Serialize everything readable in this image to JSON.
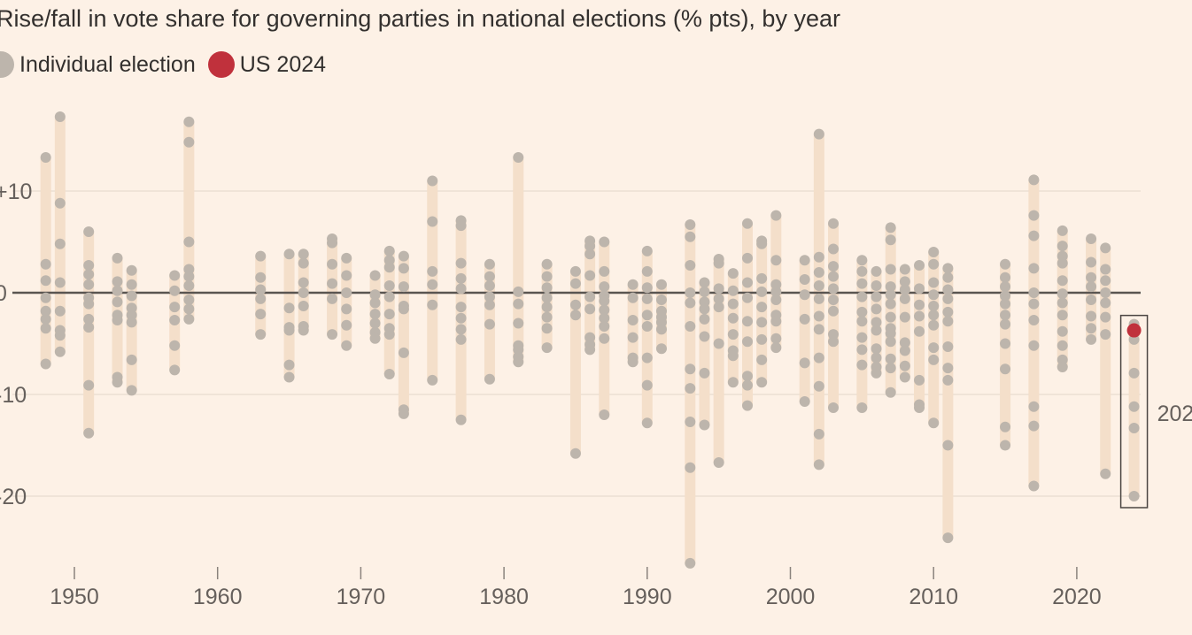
{
  "title": "Rise/fall in vote share for governing parties in national elections (% pts), by year",
  "legend": [
    {
      "label": "Individual election",
      "color": "#bdb5ac"
    },
    {
      "label": "US 2024",
      "color": "#c0313c"
    }
  ],
  "colors": {
    "background": "#fdf1e6",
    "bar": "#f4dfca",
    "dot": "#bdb5ac",
    "highlight": "#c0313c",
    "zero_line": "#5a5551",
    "grid": "#e8dccf"
  },
  "annotation": {
    "label": "202",
    "year": 2024
  },
  "chart_data": {
    "type": "scatter",
    "title": "Rise/fall in vote share for governing parties in national elections (% pts), by year",
    "xlabel": "",
    "ylabel": "",
    "xlim": [
      1947,
      2026
    ],
    "ylim": [
      -27,
      18
    ],
    "x_ticks": [
      1950,
      1960,
      1970,
      1980,
      1990,
      2000,
      2010,
      2020
    ],
    "y_ticks": [
      {
        "value": 10,
        "label": "+10"
      },
      {
        "value": 0,
        "label": "0"
      },
      {
        "value": -10,
        "label": "-10"
      },
      {
        "value": -20,
        "label": "-20"
      }
    ],
    "grid": true,
    "legend_position": "top-left",
    "series": [
      {
        "name": "Individual election",
        "points": [
          {
            "year": 1948,
            "values": [
              13.3,
              2.8,
              1.2,
              -0.5,
              -1.8,
              -2.6,
              -3.5,
              -7.0
            ]
          },
          {
            "year": 1949,
            "values": [
              17.3,
              8.8,
              4.8,
              1.0,
              -1.8,
              -3.7,
              -4.2,
              -5.8
            ]
          },
          {
            "year": 1951,
            "values": [
              6.0,
              2.7,
              1.8,
              0.8,
              -0.5,
              -1.1,
              -2.6,
              -3.4,
              -9.1,
              -13.8
            ]
          },
          {
            "year": 1953,
            "values": [
              3.4,
              1.1,
              0.2,
              -0.9,
              -2.2,
              -2.7,
              -8.3,
              -8.8
            ]
          },
          {
            "year": 1954,
            "values": [
              2.2,
              0.8,
              -0.3,
              -1.5,
              -2.2,
              -2.9,
              -6.6,
              -9.6
            ]
          },
          {
            "year": 1957,
            "values": [
              1.7,
              0.2,
              -1.4,
              -2.7,
              -5.2,
              -7.6
            ]
          },
          {
            "year": 1958,
            "values": [
              16.8,
              14.8,
              5.0,
              2.3,
              1.6,
              0.7,
              -0.7,
              -1.6,
              -2.6
            ]
          },
          {
            "year": 1963,
            "values": [
              3.6,
              1.5,
              0.3,
              -0.6,
              -2.1,
              -4.1
            ]
          },
          {
            "year": 1965,
            "values": [
              3.8,
              -1.5,
              -3.4,
              -3.7,
              -7.1,
              -8.3
            ]
          },
          {
            "year": 1966,
            "values": [
              3.8,
              2.9,
              1.0,
              0.0,
              -1.3,
              -3.3,
              -3.7
            ]
          },
          {
            "year": 1968,
            "values": [
              5.3,
              4.9,
              2.8,
              0.9,
              -0.6,
              -4.1
            ]
          },
          {
            "year": 1969,
            "values": [
              3.4,
              1.7,
              0.0,
              -1.6,
              -3.2,
              -5.2
            ]
          },
          {
            "year": 1971,
            "values": [
              1.7,
              -0.2,
              -1.0,
              -2.1,
              -3.0,
              -3.9,
              -4.5
            ]
          },
          {
            "year": 1972,
            "values": [
              4.1,
              3.2,
              2.5,
              0.7,
              -0.4,
              -2.1,
              -3.5,
              -4.1,
              -8.0
            ]
          },
          {
            "year": 1973,
            "values": [
              3.6,
              2.4,
              0.6,
              -1.3,
              -1.6,
              -5.9,
              -11.5,
              -11.9
            ]
          },
          {
            "year": 1975,
            "values": [
              11.0,
              7.0,
              2.1,
              0.8,
              -1.2,
              -8.6
            ]
          },
          {
            "year": 1977,
            "values": [
              7.1,
              6.6,
              2.9,
              1.4,
              0.4,
              -1.4,
              -2.5,
              -3.6,
              -4.6,
              -12.5
            ]
          },
          {
            "year": 1979,
            "values": [
              2.8,
              1.6,
              0.7,
              -0.4,
              -1.2,
              -3.1,
              -8.5
            ]
          },
          {
            "year": 1981,
            "values": [
              13.3,
              0.1,
              -1.1,
              -3.0,
              -5.2,
              -5.6,
              -6.3,
              -6.8
            ]
          },
          {
            "year": 1983,
            "values": [
              2.8,
              1.6,
              0.5,
              -0.5,
              -1.4,
              -2.4,
              -3.5,
              -5.4
            ]
          },
          {
            "year": 1985,
            "values": [
              2.1,
              0.9,
              -1.2,
              -2.2,
              -15.8
            ]
          },
          {
            "year": 1986,
            "values": [
              5.1,
              4.6,
              3.8,
              1.7,
              -0.4,
              -1.6,
              -4.4,
              -5.1,
              -5.6
            ]
          },
          {
            "year": 1987,
            "values": [
              5.0,
              2.1,
              0.6,
              -0.3,
              -0.8,
              -1.7,
              -2.5,
              -3.3,
              -4.5,
              -12.0
            ]
          },
          {
            "year": 1989,
            "values": [
              0.8,
              -0.5,
              -2.7,
              -4.4,
              -6.4,
              -6.8
            ]
          },
          {
            "year": 1990,
            "values": [
              4.1,
              2.1,
              0.5,
              -0.6,
              -2.2,
              -3.3,
              -6.4,
              -9.1,
              -12.8
            ]
          },
          {
            "year": 1991,
            "values": [
              0.8,
              -0.7,
              -1.8,
              -2.4,
              -2.9,
              -3.6,
              -5.5
            ]
          },
          {
            "year": 1993,
            "values": [
              6.7,
              5.5,
              2.7,
              0.0,
              -1.0,
              -3.3,
              -7.5,
              -9.4,
              -12.7,
              -17.2,
              -26.6
            ]
          },
          {
            "year": 1994,
            "values": [
              1.0,
              0.1,
              -0.9,
              -1.6,
              -2.6,
              -4.3,
              -7.9,
              -13.0
            ]
          },
          {
            "year": 1995,
            "values": [
              3.3,
              2.9,
              0.4,
              -0.6,
              -1.4,
              -5.0,
              -16.7
            ]
          },
          {
            "year": 1996,
            "values": [
              1.9,
              0.2,
              -1.1,
              -2.5,
              -4.1,
              -5.7,
              -6.2,
              -8.8
            ]
          },
          {
            "year": 1997,
            "values": [
              6.8,
              3.4,
              1.0,
              -0.5,
              -2.8,
              -4.8,
              -8.2,
              -9.1,
              -11.1
            ]
          },
          {
            "year": 1998,
            "values": [
              5.1,
              4.8,
              1.4,
              0.1,
              -1.4,
              -2.9,
              -4.6,
              -6.6,
              -8.8
            ]
          },
          {
            "year": 1999,
            "values": [
              7.6,
              3.2,
              0.8,
              0.1,
              -0.7,
              -2.2,
              -2.8,
              -4.5,
              -5.4
            ]
          },
          {
            "year": 2001,
            "values": [
              3.2,
              1.3,
              -0.2,
              -2.6,
              -6.9,
              -10.7
            ]
          },
          {
            "year": 2002,
            "values": [
              15.6,
              3.5,
              2.0,
              0.7,
              -0.6,
              -2.3,
              -3.6,
              -6.4,
              -9.2,
              -13.9,
              -16.9
            ]
          },
          {
            "year": 2003,
            "values": [
              6.8,
              4.3,
              2.6,
              1.6,
              0.4,
              -0.7,
              -1.8,
              -4.1,
              -4.8,
              -11.3
            ]
          },
          {
            "year": 2005,
            "values": [
              3.2,
              2.1,
              0.9,
              -0.4,
              -1.9,
              -2.8,
              -4.4,
              -5.6,
              -7.1,
              -11.3
            ]
          },
          {
            "year": 2006,
            "values": [
              2.1,
              0.7,
              -0.4,
              -1.6,
              -2.9,
              -3.7,
              -5.5,
              -6.4,
              -7.3,
              -7.9
            ]
          },
          {
            "year": 2007,
            "values": [
              6.4,
              5.2,
              2.3,
              0.6,
              -0.2,
              -1.1,
              -2.4,
              -3.5,
              -4.0,
              -4.8,
              -6.5,
              -7.4,
              -9.8
            ]
          },
          {
            "year": 2008,
            "values": [
              2.3,
              1.1,
              0.3,
              -0.6,
              -2.4,
              -4.9,
              -5.7,
              -7.2,
              -8.3
            ]
          },
          {
            "year": 2009,
            "values": [
              2.7,
              0.4,
              -1.2,
              -2.3,
              -3.8,
              -8.6,
              -11.0,
              -11.3
            ]
          },
          {
            "year": 2010,
            "values": [
              4.0,
              2.8,
              1.0,
              -0.2,
              -1.3,
              -2.2,
              -3.2,
              -5.4,
              -6.6,
              -12.8
            ]
          },
          {
            "year": 2011,
            "values": [
              2.4,
              1.5,
              0.3,
              -0.6,
              -1.9,
              -2.8,
              -5.3,
              -7.4,
              -8.6,
              -15.0,
              -24.1
            ]
          },
          {
            "year": 2015,
            "values": [
              2.8,
              1.5,
              0.6,
              -0.3,
              -1.1,
              -2.2,
              -3.1,
              -5.0,
              -7.5,
              -13.2,
              -15.0
            ]
          },
          {
            "year": 2017,
            "values": [
              11.1,
              7.6,
              5.6,
              2.4,
              0.0,
              -1.1,
              -2.7,
              -5.2,
              -11.2,
              -13.1,
              -19.0
            ]
          },
          {
            "year": 2019,
            "values": [
              6.1,
              4.6,
              3.6,
              2.9,
              1.2,
              -0.1,
              -1.0,
              -2.2,
              -3.8,
              -5.2,
              -6.6,
              -7.3
            ]
          },
          {
            "year": 2021,
            "values": [
              5.3,
              3.0,
              1.5,
              0.6,
              -0.7,
              -2.3,
              -3.5,
              -4.6
            ]
          },
          {
            "year": 2022,
            "values": [
              4.4,
              2.3,
              1.2,
              0.0,
              -1.0,
              -2.4,
              -4.1,
              -17.8
            ]
          },
          {
            "year": 2024,
            "values": [
              -3.1,
              -4.6,
              -7.9,
              -11.2,
              -13.3,
              -20.0
            ]
          }
        ]
      },
      {
        "name": "US 2024",
        "points": [
          {
            "year": 2024,
            "value": -3.7
          }
        ]
      }
    ]
  }
}
